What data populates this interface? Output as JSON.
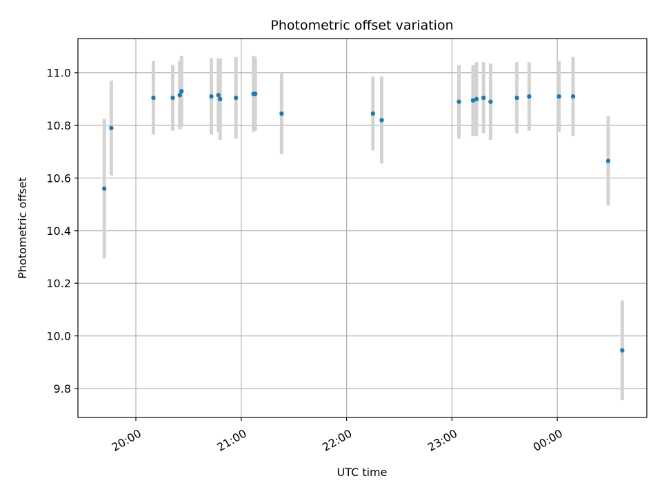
{
  "chart_data": {
    "type": "scatter",
    "title": "Photometric offset variation",
    "xlabel": "UTC time",
    "ylabel": "Photometric offset",
    "x_type": "time",
    "xlim": [
      "19:27",
      "00:51"
    ],
    "ylim": [
      9.69,
      11.13
    ],
    "grid": true,
    "x_ticks": [
      "20:00",
      "21:00",
      "22:00",
      "23:00",
      "00:00"
    ],
    "y_ticks": [
      "9.8",
      "10.0",
      "10.2",
      "10.4",
      "10.6",
      "10.8",
      "11.0"
    ],
    "y_tick_values": [
      9.8,
      10.0,
      10.2,
      10.4,
      10.6,
      10.8,
      11.0
    ],
    "colors": {
      "points": "#1f77b4",
      "error_bars": "#d3d3d3",
      "grid": "#b0b0b0"
    },
    "points": [
      {
        "x": "19:42",
        "y": 10.56,
        "err": 0.265
      },
      {
        "x": "19:46",
        "y": 10.79,
        "err": 0.18
      },
      {
        "x": "20:10",
        "y": 10.905,
        "err": 0.14
      },
      {
        "x": "20:21",
        "y": 10.905,
        "err": 0.125
      },
      {
        "x": "20:25",
        "y": 10.915,
        "err": 0.13
      },
      {
        "x": "20:26",
        "y": 10.93,
        "err": 0.135
      },
      {
        "x": "20:43",
        "y": 10.91,
        "err": 0.145
      },
      {
        "x": "20:47",
        "y": 10.915,
        "err": 0.14
      },
      {
        "x": "20:48",
        "y": 10.9,
        "err": 0.155
      },
      {
        "x": "20:57",
        "y": 10.905,
        "err": 0.155
      },
      {
        "x": "21:07",
        "y": 10.92,
        "err": 0.145
      },
      {
        "x": "21:08",
        "y": 10.92,
        "err": 0.14
      },
      {
        "x": "21:23",
        "y": 10.845,
        "err": 0.155
      },
      {
        "x": "22:15",
        "y": 10.845,
        "err": 0.14
      },
      {
        "x": "22:20",
        "y": 10.82,
        "err": 0.165
      },
      {
        "x": "23:04",
        "y": 10.89,
        "err": 0.14
      },
      {
        "x": "23:12",
        "y": 10.895,
        "err": 0.135
      },
      {
        "x": "23:14",
        "y": 10.9,
        "err": 0.14
      },
      {
        "x": "23:18",
        "y": 10.905,
        "err": 0.135
      },
      {
        "x": "23:22",
        "y": 10.89,
        "err": 0.145
      },
      {
        "x": "23:37",
        "y": 10.905,
        "err": 0.135
      },
      {
        "x": "23:44",
        "y": 10.91,
        "err": 0.13
      },
      {
        "x": "00:01",
        "y": 10.91,
        "err": 0.135
      },
      {
        "x": "00:09",
        "y": 10.91,
        "err": 0.15
      },
      {
        "x": "00:29",
        "y": 10.665,
        "err": 0.17
      },
      {
        "x": "00:37",
        "y": 9.945,
        "err": 0.19
      }
    ]
  }
}
